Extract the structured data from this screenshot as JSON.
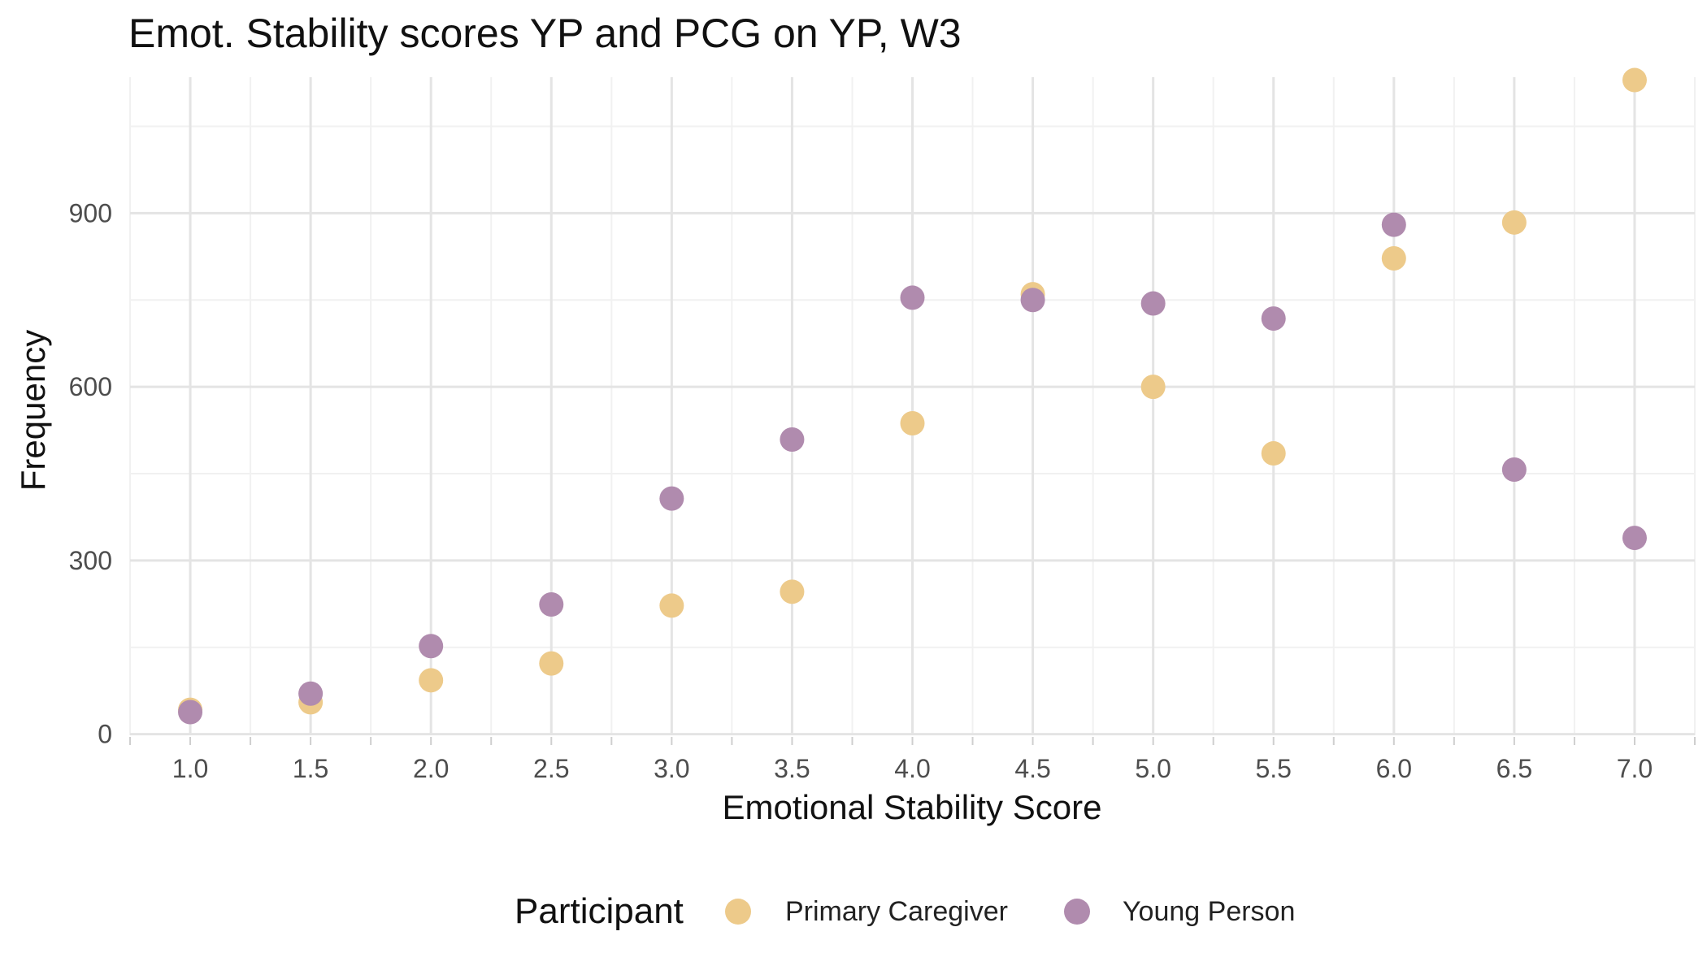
{
  "chart_data": {
    "type": "scatter",
    "title": "Emot. Stability scores YP and PCG on YP, W3",
    "xlabel": "Emotional Stability Score",
    "ylabel": "Frequency",
    "xlim": [
      0.75,
      7.25
    ],
    "ylim": [
      -2,
      1135
    ],
    "x_ticks": [
      1.0,
      1.5,
      2.0,
      2.5,
      3.0,
      3.5,
      4.0,
      4.5,
      5.0,
      5.5,
      6.0,
      6.5,
      7.0
    ],
    "x_tick_labels": [
      "1.0",
      "1.5",
      "2.0",
      "2.5",
      "3.0",
      "3.5",
      "4.0",
      "4.5",
      "5.0",
      "5.5",
      "6.0",
      "6.5",
      "7.0"
    ],
    "x_minor_ticks": [
      0.75,
      1.25,
      1.75,
      2.25,
      2.75,
      3.25,
      3.75,
      4.25,
      4.75,
      5.25,
      5.75,
      6.25,
      6.75,
      7.25
    ],
    "y_ticks": [
      0,
      300,
      600,
      900
    ],
    "y_tick_labels": [
      "0",
      "300",
      "600",
      "900"
    ],
    "y_minor_ticks": [
      150,
      450,
      750,
      1050
    ],
    "grid": true,
    "legend": {
      "title": "Participant",
      "position": "bottom"
    },
    "series": [
      {
        "name": "Primary Caregiver",
        "color": "#EDCA8A",
        "x": [
          1.0,
          1.5,
          2.0,
          2.5,
          3.0,
          3.5,
          4.0,
          4.5,
          5.0,
          5.5,
          6.0,
          6.5,
          7.0
        ],
        "y": [
          42,
          55,
          93,
          122,
          222,
          246,
          537,
          760,
          600,
          485,
          822,
          884,
          1130
        ]
      },
      {
        "name": "Young Person",
        "color": "#B08BAE",
        "x": [
          1.0,
          1.5,
          2.0,
          2.5,
          3.0,
          3.5,
          4.0,
          4.5,
          5.0,
          5.5,
          6.0,
          6.5,
          7.0
        ],
        "y": [
          38,
          70,
          152,
          224,
          407,
          509,
          754,
          750,
          744,
          718,
          880,
          457,
          339
        ]
      }
    ]
  }
}
